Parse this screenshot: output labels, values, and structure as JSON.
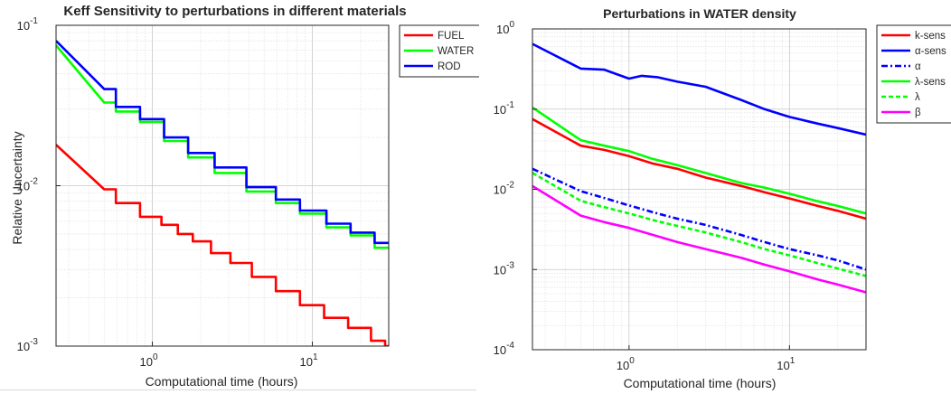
{
  "charts": [
    {
      "title": "Keff Sensitivity to perturbations in different materials",
      "xlabel": "Computational time (hours)",
      "ylabel": "Relative Uncertainty"
    },
    {
      "title": "Perturbations in WATER density",
      "xlabel": "Computational time (hours)",
      "ylabel": ""
    }
  ],
  "chart_data": [
    {
      "type": "line",
      "title": "Keff Sensitivity to perturbations in different materials",
      "xlabel": "Computational time (hours)",
      "ylabel": "Relative Uncertainty",
      "xscale": "log",
      "yscale": "log",
      "xlim": [
        0.25,
        30
      ],
      "ylim": [
        0.001,
        0.1
      ],
      "grid": true,
      "legend_position": "top-right",
      "x_ticks": [
        {
          "value": 1,
          "base": "10",
          "exp": "0"
        },
        {
          "value": 10,
          "base": "10",
          "exp": "1"
        }
      ],
      "y_ticks": [
        {
          "value": 0.001,
          "base": "10",
          "exp": "-3"
        },
        {
          "value": 0.01,
          "base": "10",
          "exp": "-2"
        },
        {
          "value": 0.1,
          "base": "10",
          "exp": "-1"
        }
      ],
      "series": [
        {
          "name": "FUEL",
          "color": "#ff0000",
          "step": true,
          "x": [
            0.25,
            0.5,
            0.7,
            1.0,
            1.3,
            1.6,
            2.0,
            2.7,
            3.5,
            5.0,
            7.0,
            10.0,
            14.0,
            20.0,
            27.0,
            30.0
          ],
          "y": [
            0.018,
            0.0095,
            0.0078,
            0.0064,
            0.0057,
            0.005,
            0.0045,
            0.0038,
            0.0033,
            0.0027,
            0.0022,
            0.0018,
            0.0015,
            0.0013,
            0.00108,
            0.001
          ]
        },
        {
          "name": "WATER",
          "color": "#00ff00",
          "step": true,
          "x": [
            0.25,
            0.5,
            0.7,
            1.0,
            1.4,
            2.0,
            3.0,
            5.0,
            7.0,
            10.0,
            15.0,
            20.0,
            30.0
          ],
          "y": [
            0.075,
            0.033,
            0.029,
            0.025,
            0.019,
            0.015,
            0.012,
            0.0092,
            0.0078,
            0.0067,
            0.0055,
            0.0049,
            0.0041
          ]
        },
        {
          "name": "ROD",
          "color": "#0000ff",
          "step": true,
          "x": [
            0.25,
            0.5,
            0.7,
            1.0,
            1.4,
            2.0,
            3.0,
            5.0,
            7.0,
            10.0,
            15.0,
            20.0,
            30.0
          ],
          "y": [
            0.08,
            0.04,
            0.031,
            0.026,
            0.02,
            0.016,
            0.013,
            0.0098,
            0.0082,
            0.007,
            0.0058,
            0.0051,
            0.0044
          ]
        }
      ]
    },
    {
      "type": "line",
      "title": "Perturbations in WATER density",
      "xlabel": "Computational time (hours)",
      "ylabel": "",
      "xscale": "log",
      "yscale": "log",
      "xlim": [
        0.25,
        30
      ],
      "ylim": [
        0.0001,
        1
      ],
      "grid": true,
      "legend_position": "top-right",
      "x_ticks": [
        {
          "value": 1,
          "base": "10",
          "exp": "0"
        },
        {
          "value": 10,
          "base": "10",
          "exp": "1"
        }
      ],
      "y_ticks": [
        {
          "value": 0.0001,
          "base": "10",
          "exp": "-4"
        },
        {
          "value": 0.001,
          "base": "10",
          "exp": "-3"
        },
        {
          "value": 0.01,
          "base": "10",
          "exp": "-2"
        },
        {
          "value": 0.1,
          "base": "10",
          "exp": "-1"
        },
        {
          "value": 1,
          "base": "10",
          "exp": "0"
        }
      ],
      "series": [
        {
          "name": "k-sens",
          "color": "#ff0000",
          "dash": "",
          "x": [
            0.25,
            0.5,
            0.7,
            1.0,
            1.4,
            2.0,
            3.0,
            5.0,
            7.0,
            10.0,
            15.0,
            20.0,
            30.0
          ],
          "y": [
            0.075,
            0.035,
            0.031,
            0.026,
            0.021,
            0.018,
            0.014,
            0.011,
            0.0092,
            0.0077,
            0.0062,
            0.0054,
            0.0043
          ]
        },
        {
          "name": "α-sens",
          "color": "#0000ff",
          "dash": "",
          "x": [
            0.25,
            0.5,
            0.7,
            1.0,
            1.2,
            1.5,
            2.0,
            3.0,
            5.0,
            7.0,
            10.0,
            15.0,
            20.0,
            30.0
          ],
          "y": [
            0.65,
            0.32,
            0.31,
            0.24,
            0.26,
            0.25,
            0.22,
            0.19,
            0.13,
            0.1,
            0.08,
            0.066,
            0.058,
            0.048
          ]
        },
        {
          "name": "α",
          "color": "#0000ff",
          "dash": "7,3,2,3",
          "x": [
            0.25,
            0.5,
            0.7,
            1.0,
            1.5,
            2.0,
            3.0,
            5.0,
            7.0,
            10.0,
            15.0,
            20.0,
            30.0
          ],
          "y": [
            0.018,
            0.0095,
            0.0078,
            0.0063,
            0.005,
            0.0043,
            0.0036,
            0.0027,
            0.0022,
            0.0018,
            0.0015,
            0.0013,
            0.001
          ]
        },
        {
          "name": "λ-sens",
          "color": "#00ff00",
          "dash": "",
          "x": [
            0.25,
            0.5,
            0.7,
            1.0,
            1.4,
            2.0,
            3.0,
            5.0,
            7.0,
            10.0,
            15.0,
            20.0,
            30.0
          ],
          "y": [
            0.105,
            0.041,
            0.035,
            0.03,
            0.024,
            0.02,
            0.016,
            0.012,
            0.0105,
            0.0088,
            0.0071,
            0.0062,
            0.005
          ]
        },
        {
          "name": "λ",
          "color": "#00ff00",
          "dash": "5,3",
          "x": [
            0.25,
            0.5,
            0.7,
            1.0,
            1.5,
            2.0,
            3.0,
            5.0,
            7.0,
            10.0,
            15.0,
            20.0,
            30.0
          ],
          "y": [
            0.016,
            0.0072,
            0.006,
            0.005,
            0.004,
            0.0035,
            0.0029,
            0.0022,
            0.0018,
            0.0015,
            0.0012,
            0.00103,
            0.00083
          ]
        },
        {
          "name": "β",
          "color": "#ff00ff",
          "dash": "",
          "x": [
            0.25,
            0.5,
            0.7,
            1.0,
            1.5,
            2.0,
            3.0,
            5.0,
            7.0,
            10.0,
            15.0,
            20.0,
            30.0
          ],
          "y": [
            0.011,
            0.0047,
            0.0039,
            0.0033,
            0.0026,
            0.0022,
            0.0018,
            0.0014,
            0.00115,
            0.00095,
            0.00075,
            0.00065,
            0.00052
          ]
        }
      ]
    }
  ]
}
